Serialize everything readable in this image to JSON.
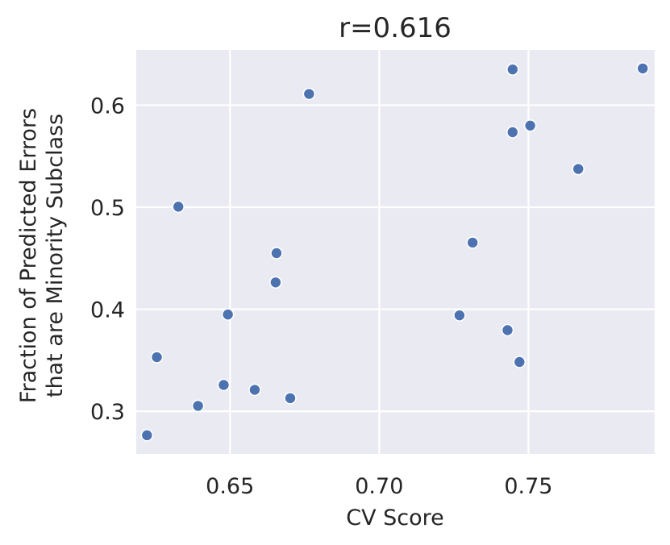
{
  "chart_data": {
    "type": "scatter",
    "title": "r=0.616",
    "xlabel": "CV Score",
    "ylabel_lines": [
      "Fraction of Predicted Errors",
      "that are Minority Subclass"
    ],
    "xlim": [
      0.6186,
      0.7923
    ],
    "ylim": [
      0.2582,
      0.6541
    ],
    "xticks": [
      0.65,
      0.7,
      0.75
    ],
    "xtick_labels": [
      "0.65",
      "0.70",
      "0.75"
    ],
    "yticks": [
      0.3,
      0.4,
      0.5,
      0.6
    ],
    "ytick_labels": [
      "0.3",
      "0.4",
      "0.5",
      "0.6"
    ],
    "grid": true,
    "background": "#eaeaf2",
    "point_color": "#4c72b0",
    "points": [
      {
        "x": 0.6222,
        "y": 0.2765
      },
      {
        "x": 0.6255,
        "y": 0.353
      },
      {
        "x": 0.6327,
        "y": 0.5005
      },
      {
        "x": 0.6393,
        "y": 0.3053
      },
      {
        "x": 0.6479,
        "y": 0.3258
      },
      {
        "x": 0.6493,
        "y": 0.3948
      },
      {
        "x": 0.6583,
        "y": 0.321
      },
      {
        "x": 0.6653,
        "y": 0.4263
      },
      {
        "x": 0.6656,
        "y": 0.455
      },
      {
        "x": 0.6702,
        "y": 0.3128
      },
      {
        "x": 0.6765,
        "y": 0.611
      },
      {
        "x": 0.7269,
        "y": 0.394
      },
      {
        "x": 0.7313,
        "y": 0.4653
      },
      {
        "x": 0.743,
        "y": 0.3795
      },
      {
        "x": 0.7447,
        "y": 0.635
      },
      {
        "x": 0.7447,
        "y": 0.5735
      },
      {
        "x": 0.747,
        "y": 0.3483
      },
      {
        "x": 0.7506,
        "y": 0.58
      },
      {
        "x": 0.7667,
        "y": 0.5375
      },
      {
        "x": 0.7883,
        "y": 0.636
      }
    ]
  }
}
